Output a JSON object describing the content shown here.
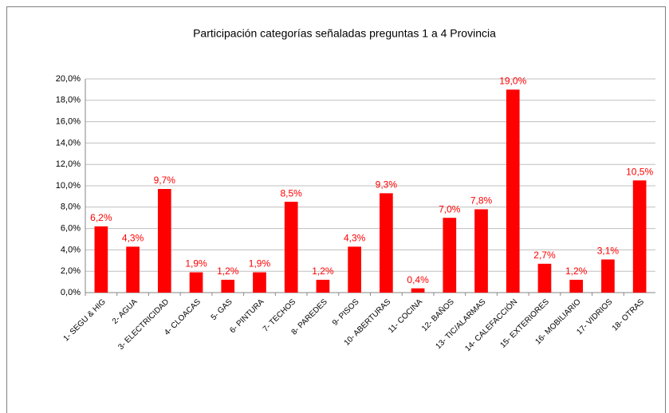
{
  "chart_data": {
    "type": "bar",
    "title": "Participación categorías señaladas preguntas 1 a 4  Provincia",
    "categories": [
      "1- SEGU & HIG",
      "2- AGUA",
      "3- ELECTRICIDAD",
      "4- CLOACAS",
      "5- GAS",
      "6- PINTURA",
      "7- TECHOS",
      "8- PAREDES",
      "9- PISOS",
      "10- ABERTURAS",
      "11- COCINA",
      "12- BAÑOS",
      "13- TIC/ALARMAS",
      "14- CALEFACCIÓN",
      "15- EXTERIORES",
      "16- MOBILIARIO",
      "17- VIDRIOS",
      "18- OTRAS"
    ],
    "values": [
      6.2,
      4.3,
      9.7,
      1.9,
      1.2,
      1.9,
      8.5,
      1.2,
      4.3,
      9.3,
      0.4,
      7.0,
      7.8,
      19.0,
      2.7,
      1.2,
      3.1,
      10.5
    ],
    "value_labels": [
      "6,2%",
      "4,3%",
      "9,7%",
      "1,9%",
      "1,2%",
      "1,9%",
      "8,5%",
      "1,2%",
      "4,3%",
      "9,3%",
      "0,4%",
      "7,0%",
      "7,8%",
      "19,0%",
      "2,7%",
      "1,2%",
      "3,1%",
      "10,5%"
    ],
    "color": "#ff0000",
    "ylim": [
      0,
      20
    ],
    "yticks": [
      {
        "value": 0,
        "label": "0,0%"
      },
      {
        "value": 2,
        "label": "2,0%"
      },
      {
        "value": 4,
        "label": "4,0%"
      },
      {
        "value": 6,
        "label": "6,0%"
      },
      {
        "value": 8,
        "label": "8,0%"
      },
      {
        "value": 10,
        "label": "10,0%"
      },
      {
        "value": 12,
        "label": "12,0%"
      },
      {
        "value": 14,
        "label": "14,0%"
      },
      {
        "value": 16,
        "label": "16,0%"
      },
      {
        "value": 18,
        "label": "18,0%"
      },
      {
        "value": 20,
        "label": "20,0%"
      }
    ],
    "grid": true
  }
}
